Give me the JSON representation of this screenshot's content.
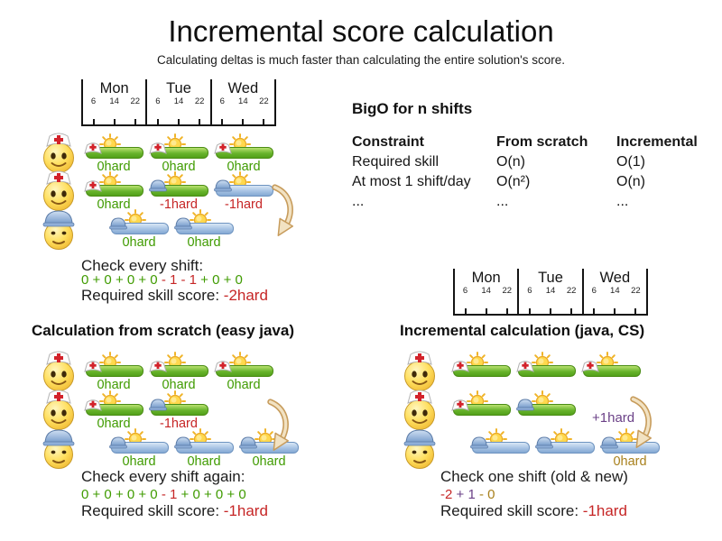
{
  "title": "Incremental score calculation",
  "subtitle": "Calculating deltas is much faster than calculating the entire solution's score.",
  "colors": {
    "green": "#3f9b00",
    "red": "#c62626",
    "purple": "#6b4187",
    "gold": "#a8801c"
  },
  "timeline": {
    "days": [
      "Mon",
      "Tue",
      "Wed"
    ],
    "hours": [
      "6",
      "14",
      "22"
    ]
  },
  "bigo": {
    "heading": "BigO for n shifts",
    "columns": [
      "Constraint",
      "From scratch",
      "Incremental"
    ],
    "rows": [
      [
        "Required skill",
        "O(n)",
        "O(1)"
      ],
      [
        "At most 1 shift/day",
        "O(n²)",
        "O(n)"
      ],
      [
        "...",
        "...",
        "..."
      ]
    ]
  },
  "sections": {
    "top": {
      "rows": [
        {
          "employee": "nurse",
          "shifts": [
            {
              "c": 0,
              "bar": "green",
              "hat": "nurse",
              "label": "0hard",
              "lc": "green"
            },
            {
              "c": 1,
              "bar": "green",
              "hat": "nurse",
              "label": "0hard",
              "lc": "green"
            },
            {
              "c": 2,
              "bar": "green",
              "hat": "nurse",
              "label": "0hard",
              "lc": "green"
            }
          ]
        },
        {
          "employee": "nurse",
          "shifts": [
            {
              "c": 0,
              "bar": "green",
              "hat": "nurse",
              "label": "0hard",
              "lc": "green"
            },
            {
              "c": 1,
              "bar": "green",
              "hat": "builder",
              "label": "-1hard",
              "lc": "red"
            },
            {
              "c": 2,
              "bar": "blue",
              "hat": "builder",
              "label": "-1hard",
              "lc": "red"
            }
          ]
        },
        {
          "employee": "builder",
          "shifts": [
            {
              "c": 0,
              "night": true,
              "bar": "blue",
              "hat": "builder",
              "label": "0hard",
              "lc": "green"
            },
            {
              "c": 1,
              "night": true,
              "bar": "blue",
              "hat": "builder",
              "label": "0hard",
              "lc": "green"
            }
          ]
        }
      ],
      "check_label": "Check every shift:",
      "sum_parts": [
        {
          "text": "0 + 0 + 0 + 0 ",
          "color": "green"
        },
        {
          "text": "- 1 - 1",
          "color": "red"
        },
        {
          "text": " + 0 + 0",
          "color": "green"
        }
      ],
      "score_label": "Required skill score: ",
      "score_value": "-2hard",
      "score_color": "red"
    },
    "scratch": {
      "heading": "Calculation from scratch (easy java)",
      "rows": [
        {
          "employee": "nurse",
          "shifts": [
            {
              "c": 0,
              "bar": "green",
              "hat": "nurse",
              "label": "0hard",
              "lc": "green"
            },
            {
              "c": 1,
              "bar": "green",
              "hat": "nurse",
              "label": "0hard",
              "lc": "green"
            },
            {
              "c": 2,
              "bar": "green",
              "hat": "nurse",
              "label": "0hard",
              "lc": "green"
            }
          ]
        },
        {
          "employee": "nurse",
          "shifts": [
            {
              "c": 0,
              "bar": "green",
              "hat": "nurse",
              "label": "0hard",
              "lc": "green"
            },
            {
              "c": 1,
              "bar": "green",
              "hat": "builder",
              "label": "-1hard",
              "lc": "red"
            }
          ]
        },
        {
          "employee": "builder",
          "shifts": [
            {
              "c": 0,
              "night": true,
              "bar": "blue",
              "hat": "builder",
              "label": "0hard",
              "lc": "green"
            },
            {
              "c": 1,
              "night": true,
              "bar": "blue",
              "hat": "builder",
              "label": "0hard",
              "lc": "green"
            },
            {
              "c": 2,
              "night": true,
              "bar": "blue",
              "hat": "builder",
              "label": "0hard",
              "lc": "green"
            }
          ]
        }
      ],
      "check_label": "Check every shift again:",
      "sum_parts": [
        {
          "text": "0 + 0 + 0 + 0 ",
          "color": "green"
        },
        {
          "text": "- 1",
          "color": "red"
        },
        {
          "text": " + 0 + 0 + 0",
          "color": "green"
        }
      ],
      "score_label": "Required skill score: ",
      "score_value": "-1hard",
      "score_color": "red"
    },
    "incremental": {
      "heading": "Incremental calculation (java, CS)",
      "arrow_label": "+1hard",
      "rows": [
        {
          "employee": "nurse",
          "shifts": [
            {
              "c": 0,
              "bar": "green",
              "hat": "nurse"
            },
            {
              "c": 1,
              "bar": "green",
              "hat": "nurse"
            },
            {
              "c": 2,
              "bar": "green",
              "hat": "nurse"
            }
          ]
        },
        {
          "employee": "nurse",
          "shifts": [
            {
              "c": 0,
              "bar": "green",
              "hat": "nurse"
            },
            {
              "c": 1,
              "bar": "green",
              "hat": "builder"
            }
          ]
        },
        {
          "employee": "builder",
          "shifts": [
            {
              "c": 0,
              "night": true,
              "bar": "blue",
              "hat": "builder"
            },
            {
              "c": 1,
              "night": true,
              "bar": "blue",
              "hat": "builder"
            },
            {
              "c": 2,
              "night": true,
              "bar": "blue",
              "hat": "builder",
              "label": "0hard",
              "lc": "gold"
            }
          ]
        }
      ],
      "check_label": "Check one shift (old & new)",
      "sum_parts": [
        {
          "text": "-2",
          "color": "red"
        },
        {
          "text": " + 1",
          "color": "purple"
        },
        {
          "text": " - 0",
          "color": "gold"
        }
      ],
      "score_label": "Required skill score: ",
      "score_value": "-1hard",
      "score_color": "red"
    }
  }
}
